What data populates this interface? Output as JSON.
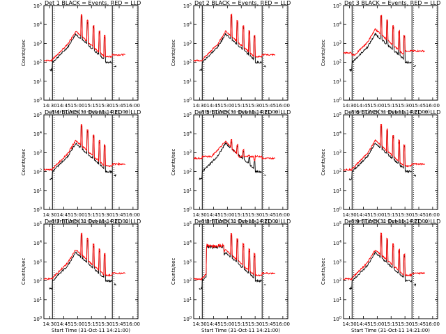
{
  "figure": {
    "background": "#ffffff",
    "events_color": "#000000",
    "lld_color": "#ff0000"
  },
  "chart_data": [
    {
      "type": "line",
      "title": "Det 1 BLACK = Events, RED = LLD",
      "xlabel": "Start Time (31-Oct-11 14:21:00)",
      "ylabel": "Counts/sec",
      "y_scale": "log",
      "ylim": [
        1,
        100000
      ],
      "xlim": [
        0,
        110
      ],
      "x_ticks": [
        "14:30",
        "14:45",
        "15:00",
        "15:15",
        "15:30",
        "15:45",
        "16:00"
      ],
      "y_ticks": [
        "10^0",
        "10^1",
        "10^2",
        "10^3",
        "10^4",
        "10^5"
      ],
      "markers": [
        10,
        80
      ],
      "profile": "normal"
    },
    {
      "type": "line",
      "title": "Det 2 BLACK = Events, RED = LLD",
      "xlabel": "Start Time (31-Oct-11 14:21:00)",
      "ylabel": "Counts/sec",
      "y_scale": "log",
      "ylim": [
        1,
        100000
      ],
      "xlim": [
        0,
        110
      ],
      "x_ticks": [
        "14:30",
        "14:45",
        "15:00",
        "15:15",
        "15:30",
        "15:45",
        "16:00"
      ],
      "y_ticks": [
        "10^0",
        "10^1",
        "10^2",
        "10^3",
        "10^4",
        "10^5"
      ],
      "markers": [
        10,
        80
      ],
      "profile": "normal"
    },
    {
      "type": "line",
      "title": "Det 3 BLACK = Events, RED = LLD",
      "xlabel": "Start Time (31-Oct-11 14:21:00)",
      "ylabel": "Counts/sec",
      "y_scale": "log",
      "ylim": [
        1,
        100000
      ],
      "xlim": [
        0,
        110
      ],
      "x_ticks": [
        "14:30",
        "14:45",
        "15:00",
        "15:15",
        "15:30",
        "15:45",
        "16:00"
      ],
      "y_ticks": [
        "10^0",
        "10^1",
        "10^2",
        "10^3",
        "10^4",
        "10^5"
      ],
      "markers": [
        10,
        80
      ],
      "profile": "det3"
    },
    {
      "type": "line",
      "title": "Det 4 BLACK = Events, RED = LLD",
      "xlabel": "Start Time (31-Oct-11 14:21:00)",
      "ylabel": "Counts/sec",
      "y_scale": "log",
      "ylim": [
        1,
        100000
      ],
      "xlim": [
        0,
        110
      ],
      "x_ticks": [
        "14:30",
        "14:45",
        "15:00",
        "15:15",
        "15:30",
        "15:45",
        "16:00"
      ],
      "y_ticks": [
        "10^0",
        "10^1",
        "10^2",
        "10^3",
        "10^4",
        "10^5"
      ],
      "markers": [
        10,
        80
      ],
      "profile": "normal"
    },
    {
      "type": "line",
      "title": "Det 5 BLACK = Events, RED = LLD",
      "xlabel": "Start Time (31-Oct-11 14:21:00)",
      "ylabel": "Counts/sec",
      "y_scale": "log",
      "ylim": [
        1,
        100000
      ],
      "xlim": [
        0,
        110
      ],
      "x_ticks": [
        "14:30",
        "14:45",
        "15:00",
        "15:15",
        "15:30",
        "15:45",
        "16:00"
      ],
      "y_ticks": [
        "10^0",
        "10^1",
        "10^2",
        "10^3",
        "10^4",
        "10^5"
      ],
      "markers": [
        10,
        80
      ],
      "profile": "det5"
    },
    {
      "type": "line",
      "title": "Det 6 BLACK = Events, RED = LLD",
      "xlabel": "Start Time (31-Oct-11 14:21:00)",
      "ylabel": "Counts/sec",
      "y_scale": "log",
      "ylim": [
        1,
        100000
      ],
      "xlim": [
        0,
        110
      ],
      "x_ticks": [
        "14:30",
        "14:45",
        "15:00",
        "15:15",
        "15:30",
        "15:45",
        "16:00"
      ],
      "y_ticks": [
        "10^0",
        "10^1",
        "10^2",
        "10^3",
        "10^4",
        "10^5"
      ],
      "markers": [
        10,
        80
      ],
      "profile": "normal"
    },
    {
      "type": "line",
      "title": "Det 7 BLACK = Events, RED = LLD",
      "xlabel": "Start Time (31-Oct-11 14:21:00)",
      "ylabel": "Counts/sec",
      "y_scale": "log",
      "ylim": [
        1,
        100000
      ],
      "xlim": [
        0,
        110
      ],
      "x_ticks": [
        "14:30",
        "14:45",
        "15:00",
        "15:15",
        "15:30",
        "15:45",
        "16:00"
      ],
      "y_ticks": [
        "10^0",
        "10^1",
        "10^2",
        "10^3",
        "10^4",
        "10^5"
      ],
      "markers": [
        10,
        80
      ],
      "profile": "normal"
    },
    {
      "type": "line",
      "title": "Det 8 BLACK = Events, RED = LLD",
      "xlabel": "Start Time (31-Oct-11 14:21:00)",
      "ylabel": "Counts/sec",
      "y_scale": "log",
      "ylim": [
        1,
        100000
      ],
      "xlim": [
        0,
        110
      ],
      "x_ticks": [
        "14:30",
        "14:45",
        "15:00",
        "15:15",
        "15:30",
        "15:45",
        "16:00"
      ],
      "y_ticks": [
        "10^0",
        "10^1",
        "10^2",
        "10^3",
        "10^4",
        "10^5"
      ],
      "markers": [
        10,
        80
      ],
      "profile": "det8"
    },
    {
      "type": "line",
      "title": "Det 9 BLACK = Events, RED = LLD",
      "xlabel": "Start Time (31-Oct-11 14:21:00)",
      "ylabel": "Counts/sec",
      "y_scale": "log",
      "ylim": [
        1,
        100000
      ],
      "xlim": [
        0,
        110
      ],
      "x_ticks": [
        "14:30",
        "14:45",
        "15:00",
        "15:15",
        "15:30",
        "15:45",
        "16:00"
      ],
      "y_ticks": [
        "10^0",
        "10^1",
        "10^2",
        "10^3",
        "10^4",
        "10^5"
      ],
      "markers": [
        10,
        80
      ],
      "profile": "normal"
    }
  ]
}
